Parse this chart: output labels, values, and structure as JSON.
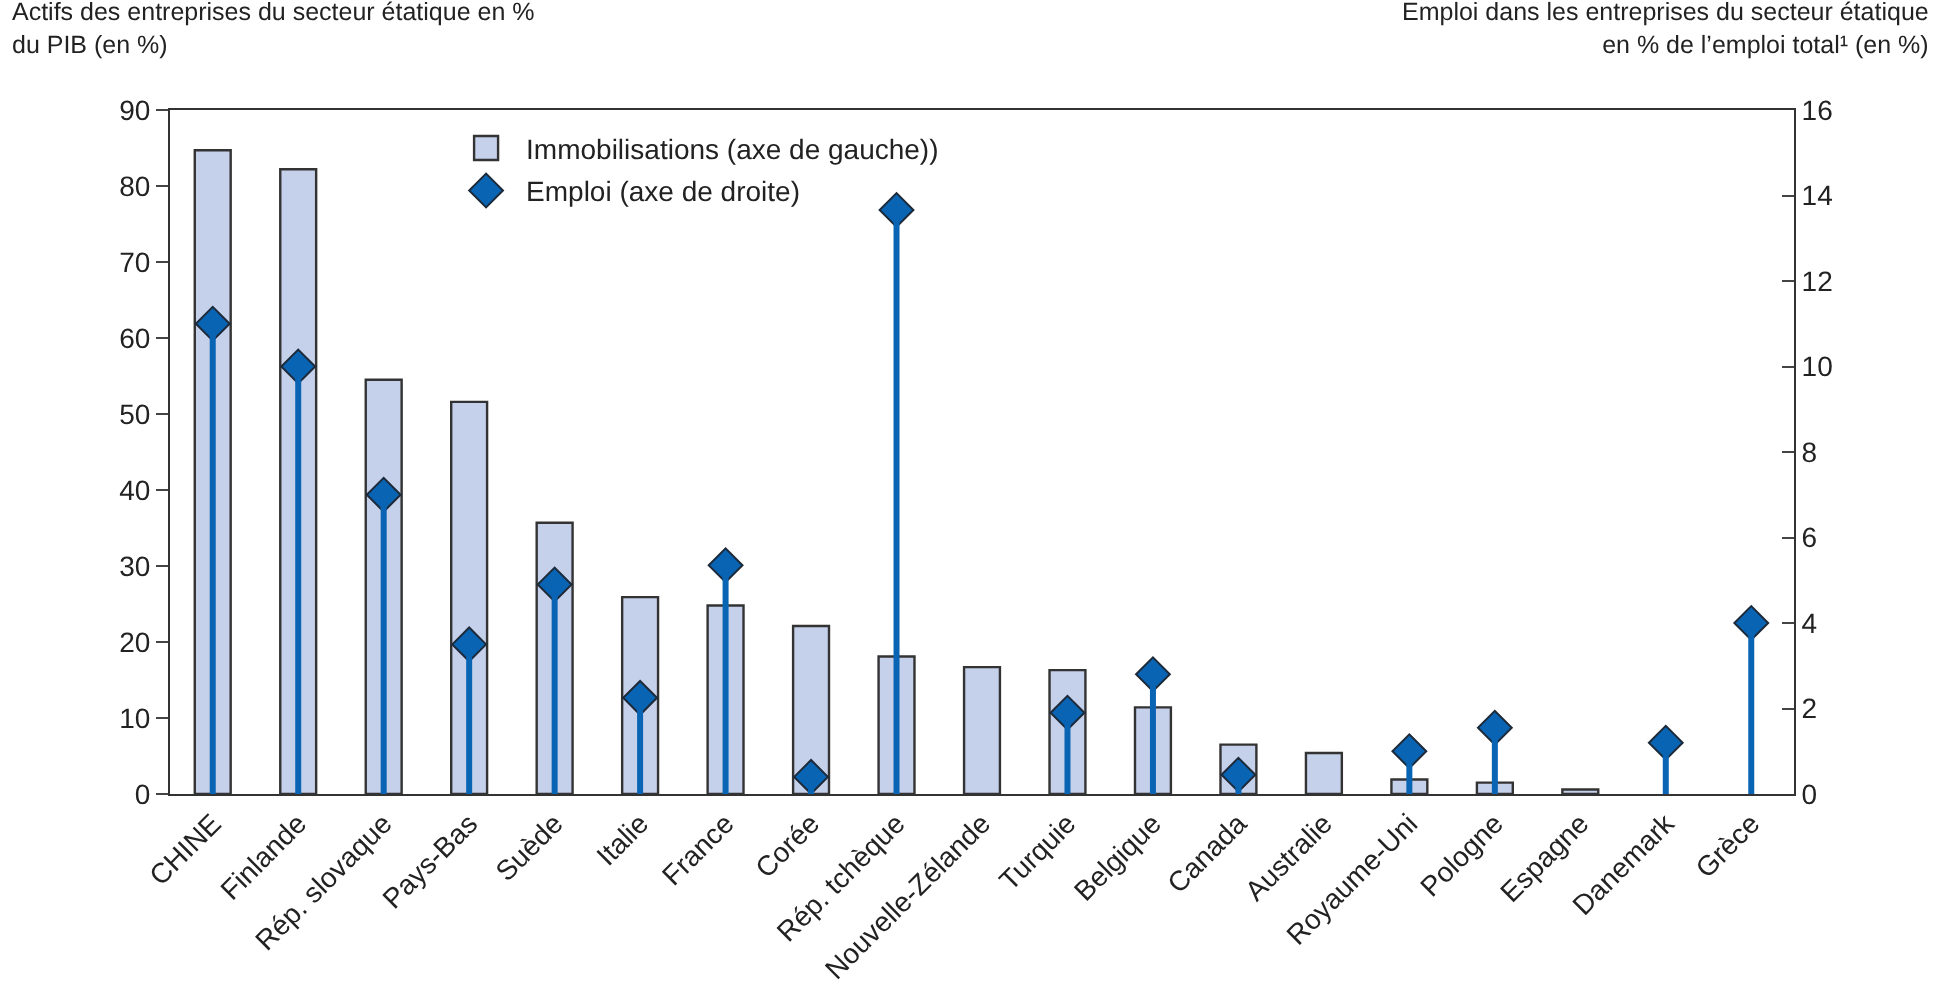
{
  "chart_data": {
    "type": "bar",
    "ylabel": "Actifs des entreprises du secteur étatique en %\ndu PIB (en %)",
    "y2label": "Emploi dans les entreprises du secteur étatique\nen % de l’emploi total¹ (en %)",
    "categories": [
      "CHINE",
      "Finlande",
      "Rép. slovaque",
      "Pays-Bas",
      "Suède",
      "Italie",
      "France",
      "Corée",
      "Rép. tchèque",
      "Nouvelle-Zélande",
      "Turquie",
      "Belgique",
      "Canada",
      "Australie",
      "Royaume-Uni",
      "Pologne",
      "Espagne",
      "Danemark",
      "Grèce"
    ],
    "series": [
      {
        "name": "Immobilisations (axe de gauche))",
        "color": "#c5d0ea",
        "values": [
          84.7,
          82.2,
          54.5,
          51.6,
          35.7,
          25.9,
          24.8,
          22.1,
          18.1,
          16.7,
          16.3,
          11.4,
          6.5,
          5.4,
          1.9,
          1.5,
          0.6,
          null,
          null
        ]
      },
      {
        "name": "Emploi (axe de droite)",
        "type": "lollipop",
        "axis": "y2",
        "marker": "diamond",
        "color": "#0a64b4",
        "values": [
          11.0,
          10.0,
          7.0,
          3.5,
          4.9,
          2.25,
          5.35,
          0.4,
          13.66,
          null,
          1.9,
          2.8,
          0.45,
          null,
          1.0,
          1.55,
          null,
          1.2,
          4.0
        ]
      }
    ],
    "ylim": [
      0,
      90
    ],
    "yticks": [
      0,
      10,
      20,
      30,
      40,
      50,
      60,
      70,
      80,
      90
    ],
    "y2lim": [
      0,
      16
    ],
    "y2ticks": [
      0,
      2,
      4,
      6,
      8,
      10,
      12,
      14,
      16
    ],
    "grid": false,
    "legend": "top"
  }
}
